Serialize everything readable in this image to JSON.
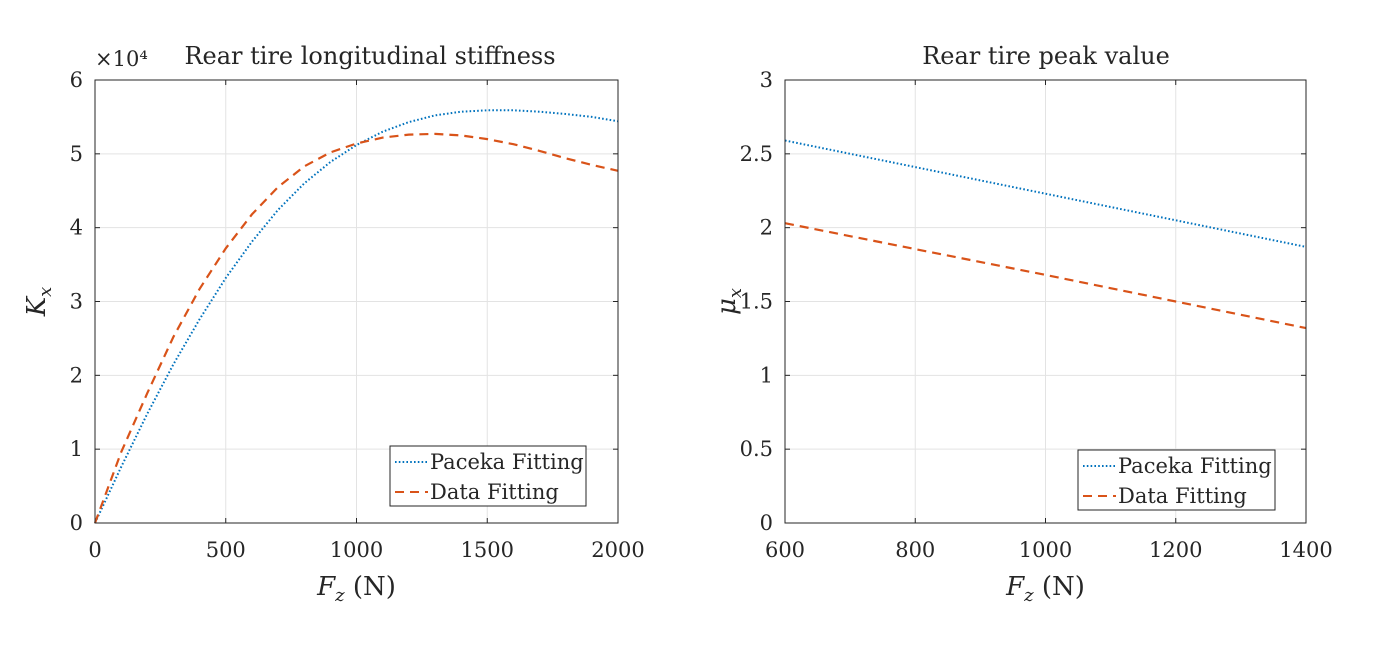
{
  "chart_data": [
    {
      "type": "line",
      "title": "Rear tire longitudinal stiffness",
      "exponent_label": "×10⁴",
      "xlabel": {
        "var": "F",
        "sub": "z",
        "unit": " (N)"
      },
      "ylabel": {
        "var": "K",
        "sub": "x"
      },
      "xlim": [
        0,
        2000
      ],
      "ylim": [
        0,
        6
      ],
      "y_scale_factor": 10000,
      "xticks": [
        0,
        500,
        1000,
        1500,
        2000
      ],
      "yticks": [
        0,
        1,
        2,
        3,
        4,
        5,
        6
      ],
      "xtick_labels": [
        "0",
        "500",
        "1000",
        "1500",
        "2000"
      ],
      "ytick_labels": [
        "0",
        "1",
        "2",
        "3",
        "4",
        "5",
        "6"
      ],
      "grid": true,
      "legend_position": "bottom-right",
      "series": [
        {
          "name": "Paceka Fitting",
          "color": "#0072BD",
          "dash": "dotted",
          "x": [
            0,
            100,
            200,
            300,
            400,
            500,
            600,
            700,
            800,
            900,
            1000,
            1100,
            1200,
            1300,
            1400,
            1500,
            1600,
            1700,
            1800,
            1900,
            2000
          ],
          "y": [
            0,
            0.76,
            1.48,
            2.15,
            2.76,
            3.32,
            3.81,
            4.24,
            4.6,
            4.89,
            5.12,
            5.3,
            5.43,
            5.52,
            5.57,
            5.59,
            5.59,
            5.57,
            5.54,
            5.5,
            5.44
          ]
        },
        {
          "name": "Data Fitting",
          "color": "#D95319",
          "dash": "dashed",
          "x": [
            0,
            100,
            200,
            300,
            400,
            500,
            600,
            700,
            800,
            900,
            1000,
            1100,
            1200,
            1300,
            1400,
            1500,
            1600,
            1700,
            1800,
            1900,
            2000
          ],
          "y": [
            0,
            0.96,
            1.76,
            2.52,
            3.17,
            3.72,
            4.18,
            4.55,
            4.83,
            5.02,
            5.14,
            5.22,
            5.26,
            5.27,
            5.25,
            5.2,
            5.13,
            5.04,
            4.94,
            4.85,
            4.77
          ]
        }
      ]
    },
    {
      "type": "line",
      "title": "Rear tire peak value",
      "xlabel": {
        "var": "F",
        "sub": "z",
        "unit": " (N)"
      },
      "ylabel": {
        "var": "μ",
        "sub": "x"
      },
      "xlim": [
        600,
        1400
      ],
      "ylim": [
        0,
        3
      ],
      "xticks": [
        600,
        800,
        1000,
        1200,
        1400
      ],
      "yticks": [
        0,
        0.5,
        1,
        1.5,
        2,
        2.5,
        3
      ],
      "xtick_labels": [
        "600",
        "800",
        "1000",
        "1200",
        "1400"
      ],
      "ytick_labels": [
        "0",
        "0.5",
        "1",
        "1.5",
        "2",
        "2.5",
        "3"
      ],
      "grid": true,
      "legend_position": "bottom-right",
      "series": [
        {
          "name": "Paceka Fitting",
          "color": "#0072BD",
          "dash": "dotted",
          "x": [
            600,
            800,
            1000,
            1200,
            1400
          ],
          "y": [
            2.59,
            2.41,
            2.23,
            2.05,
            1.87
          ]
        },
        {
          "name": "Data Fitting",
          "color": "#D95319",
          "dash": "dashed",
          "x": [
            600,
            800,
            1000,
            1200,
            1400
          ],
          "y": [
            2.03,
            1.855,
            1.68,
            1.5,
            1.32
          ]
        }
      ]
    }
  ]
}
